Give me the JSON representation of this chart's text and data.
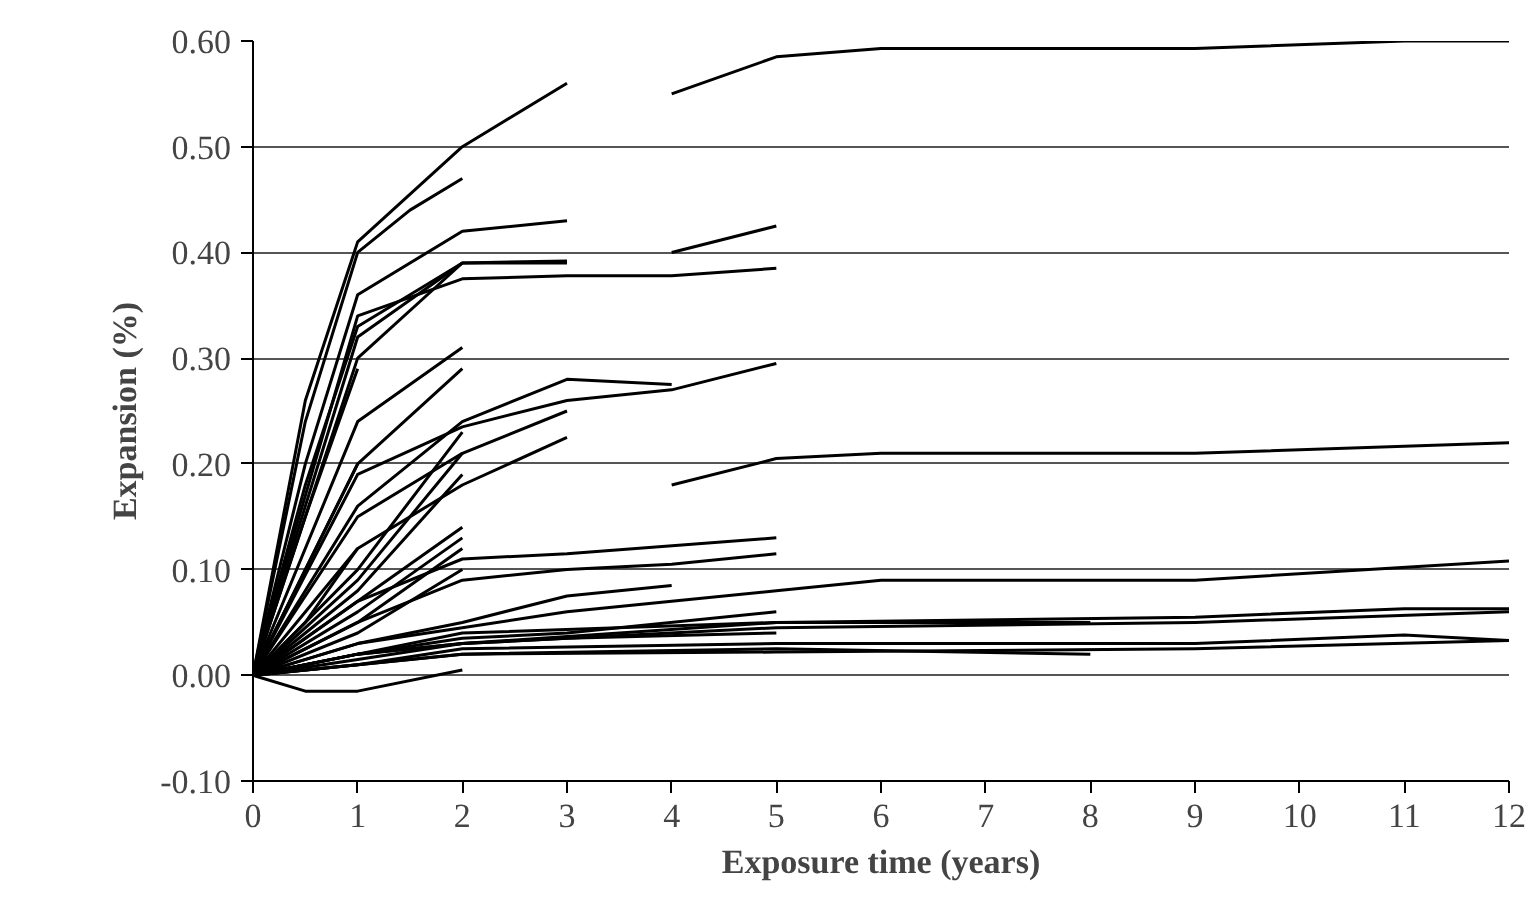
{
  "chart_data": {
    "type": "line",
    "xlabel": "Exposure time (years)",
    "ylabel": "Expansion (%)",
    "xlim": [
      0,
      12
    ],
    "xticks": [
      0,
      1,
      2,
      3,
      4,
      5,
      6,
      7,
      8,
      9,
      10,
      11,
      12
    ],
    "ylim": [
      -0.1,
      0.6
    ],
    "yticks": [
      {
        "value": -0.1,
        "label": "-0.10"
      },
      {
        "value": 0,
        "label": "0.00"
      },
      {
        "value": 0.1,
        "label": "0.10"
      },
      {
        "value": 0.2,
        "label": "0.20"
      },
      {
        "value": 0.3,
        "label": "0.30"
      },
      {
        "value": 0.4,
        "label": "0.40"
      },
      {
        "value": 0.5,
        "label": "0.50"
      },
      {
        "value": 0.6,
        "label": "0.60"
      }
    ],
    "grid": "y",
    "line_style": "solid",
    "series": [
      {
        "color": "#000000",
        "x": [
          0,
          0.5,
          1,
          2,
          3
        ],
        "values": [
          0,
          0.26,
          0.41,
          0.5,
          0.56
        ]
      },
      {
        "color": "#000000",
        "x": [
          4,
          5,
          6,
          9,
          11,
          12
        ],
        "values": [
          0.55,
          0.585,
          0.593,
          0.593,
          0.6,
          0.6
        ]
      },
      {
        "color": "#000000",
        "x": [
          0,
          0.5,
          1,
          1.5,
          2
        ],
        "values": [
          0,
          0.24,
          0.4,
          0.44,
          0.47
        ]
      },
      {
        "color": "#000000",
        "x": [
          0,
          0.5,
          1,
          2,
          3
        ],
        "values": [
          0,
          0.2,
          0.36,
          0.42,
          0.43
        ]
      },
      {
        "color": "#000000",
        "x": [
          4,
          5
        ],
        "values": [
          0.4,
          0.425
        ]
      },
      {
        "color": "#000000",
        "x": [
          0,
          0.5,
          1,
          2,
          3
        ],
        "values": [
          0,
          0.18,
          0.33,
          0.39,
          0.39
        ]
      },
      {
        "color": "#000000",
        "x": [
          0,
          1,
          2,
          3,
          4,
          5
        ],
        "values": [
          0,
          0.34,
          0.375,
          0.378,
          0.378,
          0.385
        ]
      },
      {
        "color": "#000000",
        "x": [
          0,
          1,
          2,
          3
        ],
        "values": [
          0,
          0.32,
          0.39,
          0.392
        ]
      },
      {
        "color": "#000000",
        "x": [
          0,
          1,
          2
        ],
        "values": [
          0,
          0.3,
          0.39
        ]
      },
      {
        "color": "#000000",
        "x": [
          0,
          1,
          2
        ],
        "values": [
          0,
          0.24,
          0.31
        ]
      },
      {
        "color": "#000000",
        "x": [
          0,
          1,
          2
        ],
        "values": [
          0,
          0.2,
          0.29
        ]
      },
      {
        "color": "#000000",
        "x": [
          0,
          1,
          2,
          3,
          4
        ],
        "values": [
          0,
          0.16,
          0.24,
          0.28,
          0.275
        ]
      },
      {
        "color": "#000000",
        "x": [
          0,
          1,
          2,
          3,
          4,
          5
        ],
        "values": [
          0,
          0.19,
          0.235,
          0.26,
          0.27,
          0.295
        ]
      },
      {
        "color": "#000000",
        "x": [
          0,
          1,
          2,
          3
        ],
        "values": [
          0,
          0.15,
          0.21,
          0.25
        ]
      },
      {
        "color": "#000000",
        "x": [
          0,
          1,
          2,
          3
        ],
        "values": [
          0,
          0.12,
          0.18,
          0.225
        ]
      },
      {
        "color": "#000000",
        "x": [
          4,
          5,
          6,
          9,
          12
        ],
        "values": [
          0.18,
          0.205,
          0.21,
          0.21,
          0.22
        ]
      },
      {
        "color": "#000000",
        "x": [
          0,
          1,
          2
        ],
        "values": [
          0,
          0.1,
          0.23
        ]
      },
      {
        "color": "#000000",
        "x": [
          0,
          1,
          2
        ],
        "values": [
          0,
          0.09,
          0.21
        ]
      },
      {
        "color": "#000000",
        "x": [
          0,
          1,
          2
        ],
        "values": [
          0,
          0.08,
          0.19
        ]
      },
      {
        "color": "#000000",
        "x": [
          0,
          1,
          2
        ],
        "values": [
          0,
          0.07,
          0.14
        ]
      },
      {
        "color": "#000000",
        "x": [
          0,
          1,
          2
        ],
        "values": [
          0,
          0.06,
          0.13
        ]
      },
      {
        "color": "#000000",
        "x": [
          0,
          1,
          2
        ],
        "values": [
          0,
          0.05,
          0.12
        ]
      },
      {
        "color": "#000000",
        "x": [
          0,
          1,
          2
        ],
        "values": [
          0,
          0.04,
          0.1
        ]
      },
      {
        "color": "#000000",
        "x": [
          0,
          0.5,
          1
        ],
        "values": [
          0,
          0.15,
          0.29
        ]
      },
      {
        "color": "#000000",
        "x": [
          0,
          0.5,
          1
        ],
        "values": [
          0,
          0.1,
          0.2
        ]
      },
      {
        "color": "#000000",
        "x": [
          0,
          0.5,
          1
        ],
        "values": [
          0,
          0.05,
          0.12
        ]
      },
      {
        "color": "#000000",
        "x": [
          0,
          1,
          2,
          3,
          5
        ],
        "values": [
          0,
          0.07,
          0.11,
          0.115,
          0.13
        ]
      },
      {
        "color": "#000000",
        "x": [
          0,
          1,
          2,
          3,
          4,
          5
        ],
        "values": [
          0,
          0.05,
          0.09,
          0.1,
          0.105,
          0.115
        ]
      },
      {
        "color": "#000000",
        "x": [
          0,
          1,
          2,
          3,
          4
        ],
        "values": [
          0,
          0.03,
          0.05,
          0.075,
          0.085
        ]
      },
      {
        "color": "#000000",
        "x": [
          0,
          1,
          2,
          3,
          4,
          5,
          6,
          9,
          12
        ],
        "values": [
          0,
          0.03,
          0.045,
          0.06,
          0.07,
          0.08,
          0.09,
          0.09,
          0.108
        ]
      },
      {
        "color": "#000000",
        "x": [
          0,
          1,
          2,
          5,
          9,
          11,
          12
        ],
        "values": [
          0,
          0.02,
          0.04,
          0.05,
          0.055,
          0.063,
          0.063
        ]
      },
      {
        "color": "#000000",
        "x": [
          0,
          1,
          2,
          5,
          8
        ],
        "values": [
          0,
          0.02,
          0.03,
          0.05,
          0.05
        ]
      },
      {
        "color": "#000000",
        "x": [
          0,
          1,
          2,
          5,
          9,
          12
        ],
        "values": [
          0,
          0.015,
          0.03,
          0.045,
          0.05,
          0.06
        ]
      },
      {
        "color": "#000000",
        "x": [
          0,
          1,
          2,
          3,
          5
        ],
        "values": [
          0,
          0.02,
          0.035,
          0.04,
          0.06
        ]
      },
      {
        "color": "#000000",
        "x": [
          0,
          1,
          2,
          3,
          5
        ],
        "values": [
          0,
          0.02,
          0.03,
          0.035,
          0.04
        ]
      },
      {
        "color": "#000000",
        "x": [
          0,
          1,
          2,
          5,
          9,
          11,
          12
        ],
        "values": [
          0,
          0.01,
          0.025,
          0.03,
          0.03,
          0.038,
          0.033
        ]
      },
      {
        "color": "#000000",
        "x": [
          0,
          1,
          2,
          5,
          8
        ],
        "values": [
          0,
          0.01,
          0.02,
          0.025,
          0.02
        ]
      },
      {
        "color": "#000000",
        "x": [
          0,
          1,
          2,
          5,
          9,
          12
        ],
        "values": [
          0,
          0.01,
          0.02,
          0.022,
          0.025,
          0.033
        ]
      },
      {
        "color": "#000000",
        "x": [
          0,
          0.5,
          1,
          2
        ],
        "values": [
          0,
          -0.015,
          -0.015,
          0.005
        ]
      }
    ]
  }
}
